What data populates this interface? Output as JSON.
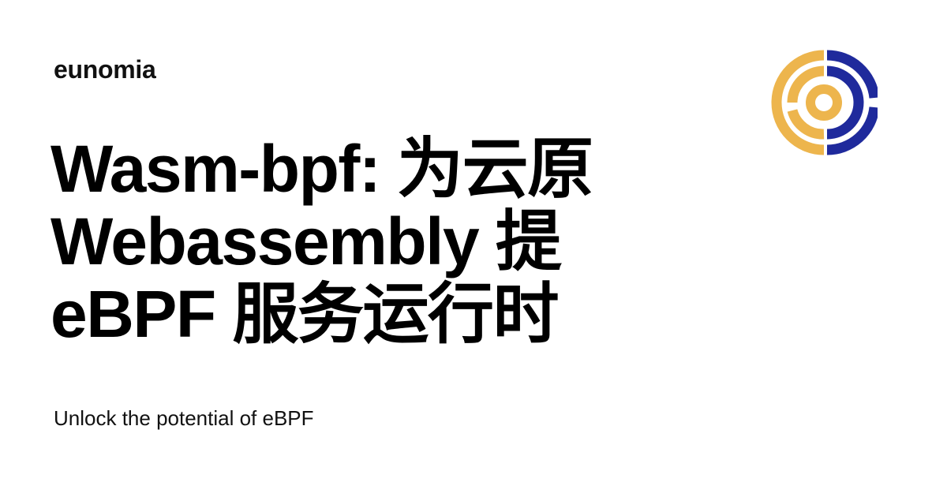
{
  "site": {
    "name": "eunomia"
  },
  "post": {
    "title": "Wasm-bpf: 为云原\nWebassembly 提\neBPF 服务运行时",
    "description": "Unlock the potential of eBPF"
  },
  "logo": {
    "icon": "eunomia-logo-icon",
    "colors": {
      "left": "#EDB54D",
      "right": "#1F2A9C"
    }
  }
}
